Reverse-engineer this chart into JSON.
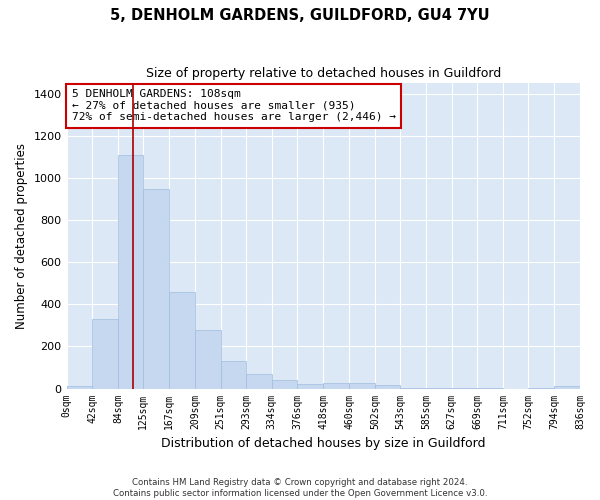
{
  "title": "5, DENHOLM GARDENS, GUILDFORD, GU4 7YU",
  "subtitle": "Size of property relative to detached houses in Guildford",
  "xlabel": "Distribution of detached houses by size in Guildford",
  "ylabel": "Number of detached properties",
  "bar_color": "#c5d8f0",
  "bar_edge_color": "#a0bede",
  "background_color": "#dce8f5",
  "fig_background": "#ffffff",
  "grid_color": "#ffffff",
  "vline_x": 108,
  "vline_color": "#aa0000",
  "annotation_text": "5 DENHOLM GARDENS: 108sqm\n← 27% of detached houses are smaller (935)\n72% of semi-detached houses are larger (2,446) →",
  "annotation_box_color": "#cc0000",
  "bin_edges": [
    0,
    42,
    84,
    125,
    167,
    209,
    251,
    293,
    334,
    376,
    418,
    460,
    502,
    543,
    585,
    627,
    669,
    711,
    752,
    794,
    836
  ],
  "bar_heights": [
    10,
    330,
    1110,
    945,
    460,
    280,
    130,
    70,
    42,
    22,
    25,
    25,
    18,
    5,
    5,
    3,
    3,
    0,
    3,
    10
  ],
  "ylim": [
    0,
    1450
  ],
  "yticks": [
    0,
    200,
    400,
    600,
    800,
    1000,
    1200,
    1400
  ],
  "footnote": "Contains HM Land Registry data © Crown copyright and database right 2024.\nContains public sector information licensed under the Open Government Licence v3.0.",
  "tick_labels": [
    "0sqm",
    "42sqm",
    "84sqm",
    "125sqm",
    "167sqm",
    "209sqm",
    "251sqm",
    "293sqm",
    "334sqm",
    "376sqm",
    "418sqm",
    "460sqm",
    "502sqm",
    "543sqm",
    "585sqm",
    "627sqm",
    "669sqm",
    "711sqm",
    "752sqm",
    "794sqm",
    "836sqm"
  ]
}
